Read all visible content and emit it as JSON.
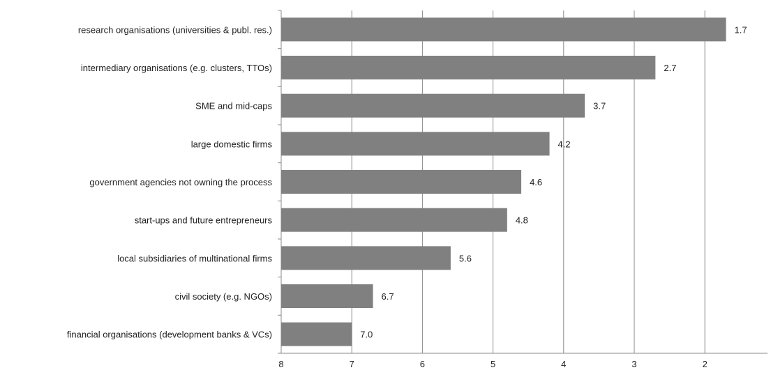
{
  "chart_data": {
    "type": "bar",
    "orientation": "horizontal",
    "reversed_x_axis": true,
    "categories": [
      "research organisations (universities & publ. res.)",
      "intermediary organisations (e.g. clusters, TTOs)",
      "SME and mid-caps",
      "large domestic firms",
      "government agencies not owning the process",
      "start-ups and future entrepreneurs",
      "local subsidiaries of multinational firms",
      "civil society (e.g. NGOs)",
      "financial organisations (development banks & VCs)"
    ],
    "values": [
      1.7,
      2.7,
      3.7,
      4.2,
      4.6,
      4.8,
      5.6,
      6.7,
      7.0
    ],
    "value_labels": [
      "1.7",
      "2.7",
      "3.7",
      "4.2",
      "4.6",
      "4.8",
      "5.6",
      "6.7",
      "7.0"
    ],
    "title": "",
    "xlabel": "",
    "ylabel": "",
    "xlim": [
      8,
      1
    ],
    "x_ticks": [
      "8",
      "7",
      "6",
      "5",
      "4",
      "3",
      "2"
    ],
    "grid": "vertical",
    "legend": "none",
    "bar_color": "#808080"
  }
}
